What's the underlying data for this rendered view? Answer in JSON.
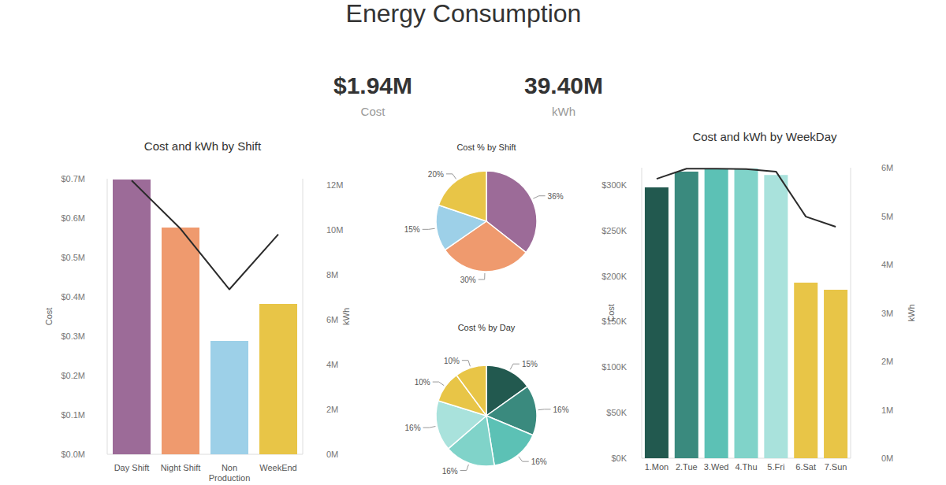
{
  "title": "Energy Consumption",
  "cards": [
    {
      "value": "$1.94M",
      "label": "Cost"
    },
    {
      "value": "39.40M",
      "label": "kWh"
    }
  ],
  "chart_data": [
    {
      "type": "bar",
      "title": "Cost and kWh by Shift",
      "categories": [
        "Day Shift",
        "Night Shift",
        "Non Production",
        "WeekEnd"
      ],
      "ylabel": "Cost",
      "y2label": "kWh",
      "ylim": [
        0,
        700000
      ],
      "yticks": [
        {
          "value": 0,
          "label": "$0.0M"
        },
        {
          "value": 100000,
          "label": "$0.1M"
        },
        {
          "value": 200000,
          "label": "$0.2M"
        },
        {
          "value": 300000,
          "label": "$0.3M"
        },
        {
          "value": 400000,
          "label": "$0.4M"
        },
        {
          "value": 500000,
          "label": "$0.5M"
        },
        {
          "value": 600000,
          "label": "$0.6M"
        },
        {
          "value": 700000,
          "label": "$0.7M"
        }
      ],
      "y2lim": [
        0,
        12280000
      ],
      "y2ticks": [
        {
          "value": 0,
          "label": "0M"
        },
        {
          "value": 2000000,
          "label": "2M"
        },
        {
          "value": 4000000,
          "label": "4M"
        },
        {
          "value": 6000000,
          "label": "6M"
        },
        {
          "value": 8000000,
          "label": "8M"
        },
        {
          "value": 10000000,
          "label": "10M"
        },
        {
          "value": 12000000,
          "label": "12M"
        }
      ],
      "grid": false,
      "series": [
        {
          "type": "bar",
          "colors": [
            "#9c6b98",
            "#ef9a6e",
            "#9dd0e8",
            "#e8c547"
          ],
          "values": [
            698000,
            576000,
            288000,
            382000
          ]
        },
        {
          "type": "line",
          "axis": "y2",
          "color": "#2b2b2b",
          "values": [
            12200000,
            10050000,
            7350000,
            9800000
          ]
        }
      ]
    },
    {
      "type": "pie",
      "title": "Cost % by Shift",
      "values": [
        36,
        30,
        15,
        20
      ],
      "value_labels": [
        "36%",
        "30%",
        "15%",
        "20%"
      ],
      "colors": [
        "#9c6b98",
        "#ef9a6e",
        "#9dd0e8",
        "#e8c547"
      ],
      "data_labels": true
    },
    {
      "type": "pie",
      "title": "Cost % by Day",
      "values": [
        15,
        16,
        16,
        16,
        16,
        10,
        10
      ],
      "value_labels": [
        "15%",
        "16%",
        "16%",
        "16%",
        "16%",
        "10%",
        "10%"
      ],
      "colors": [
        "#22594f",
        "#3a8a7e",
        "#5cc1b5",
        "#80d3c9",
        "#a9e2dc",
        "#e8c547",
        "#e8c547"
      ],
      "data_labels": true
    },
    {
      "type": "bar",
      "title": "Cost and kWh by WeekDay",
      "categories": [
        "1.Mon",
        "2.Tue",
        "3.Wed",
        "4.Thu",
        "5.Fri",
        "6.Sat",
        "7.Sun"
      ],
      "ylabel": "Cost",
      "y2label": "kWh",
      "ylim": [
        0,
        319000
      ],
      "yticks": [
        {
          "value": 0,
          "label": "$0K"
        },
        {
          "value": 50000,
          "label": "$50K"
        },
        {
          "value": 100000,
          "label": "$100K"
        },
        {
          "value": 150000,
          "label": "$150K"
        },
        {
          "value": 200000,
          "label": "$200K"
        },
        {
          "value": 250000,
          "label": "$250K"
        },
        {
          "value": 300000,
          "label": "$300K"
        }
      ],
      "y2lim": [
        0,
        6000000
      ],
      "y2ticks": [
        {
          "value": 0,
          "label": "0M"
        },
        {
          "value": 1000000,
          "label": "1M"
        },
        {
          "value": 2000000,
          "label": "2M"
        },
        {
          "value": 3000000,
          "label": "3M"
        },
        {
          "value": 4000000,
          "label": "4M"
        },
        {
          "value": 5000000,
          "label": "5M"
        },
        {
          "value": 6000000,
          "label": "6M"
        }
      ],
      "grid": false,
      "series": [
        {
          "type": "bar",
          "colors": [
            "#22594f",
            "#3a8a7e",
            "#5cc1b5",
            "#80d3c9",
            "#a9e2dc",
            "#e8c547",
            "#e8c547"
          ],
          "values": [
            297400,
            314700,
            318000,
            318000,
            311000,
            192800,
            185000
          ]
        },
        {
          "type": "line",
          "axis": "y2",
          "color": "#2b2b2b",
          "values": [
            5770000,
            5980000,
            5980000,
            5970000,
            5920000,
            4990000,
            4780000
          ]
        }
      ]
    }
  ]
}
